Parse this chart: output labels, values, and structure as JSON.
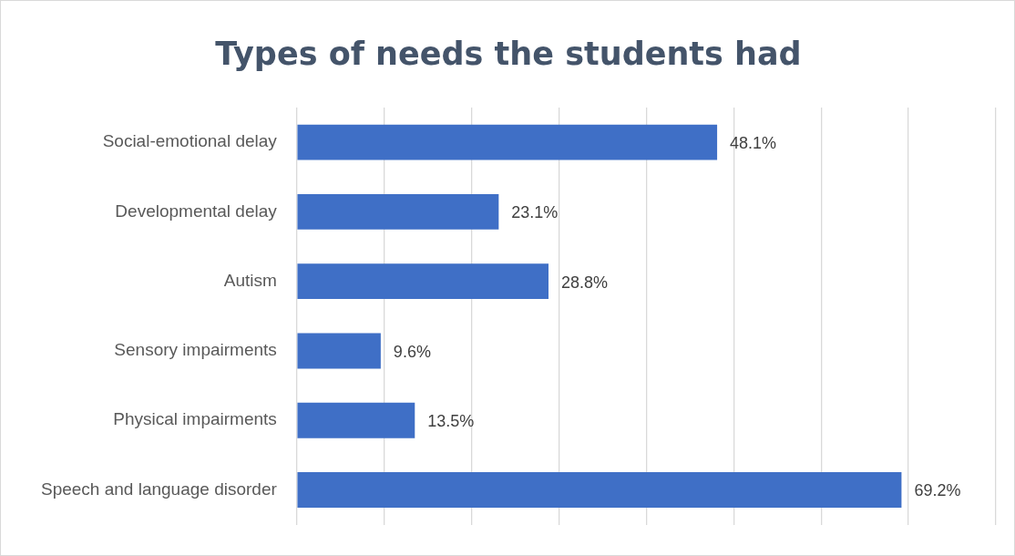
{
  "chart_data": {
    "type": "bar",
    "orientation": "horizontal",
    "title": "Types of needs the students had",
    "categories": [
      "Social-emotional delay",
      "Developmental delay",
      "Autism",
      "Sensory impairments",
      "Physical impairments",
      "Speech and language disorder"
    ],
    "values": [
      48.1,
      23.1,
      28.8,
      9.6,
      13.5,
      69.2
    ],
    "value_labels": [
      "48.1%",
      "23.1%",
      "28.8%",
      "9.6%",
      "13.5%",
      "69.2%"
    ],
    "color": "#3f6fc6",
    "xlim": [
      0,
      80
    ],
    "xticks": [
      {
        "value": 0,
        "label": null
      },
      {
        "value": 10,
        "label": null
      },
      {
        "value": 20,
        "label": null
      },
      {
        "value": 30,
        "label": null
      },
      {
        "value": 40,
        "label": null
      },
      {
        "value": 50,
        "label": null
      },
      {
        "value": 60,
        "label": null
      },
      {
        "value": 70,
        "label": null
      },
      {
        "value": 80,
        "label": null
      }
    ],
    "grid": "x",
    "tick_labels": "y",
    "legend": false
  }
}
